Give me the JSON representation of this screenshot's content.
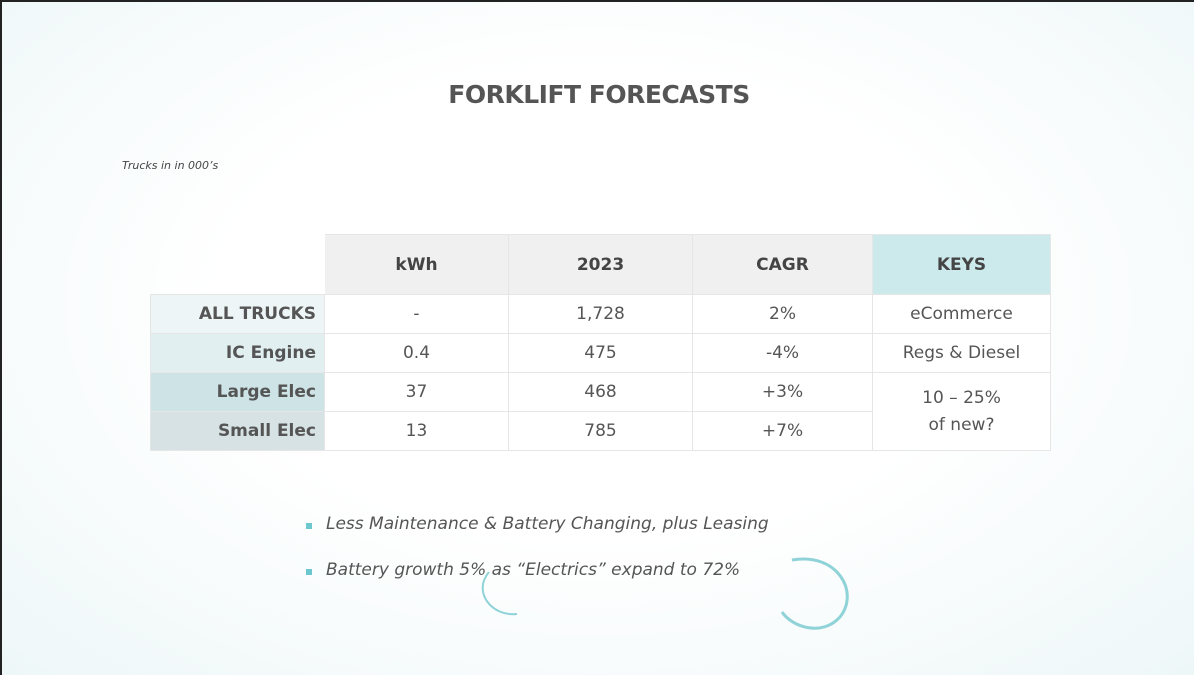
{
  "header": {
    "title": "FORKLIFT FORECASTS",
    "subtitle": "Trucks in in 000’s"
  },
  "table": {
    "columns": [
      "kWh",
      "2023",
      "CAGR",
      "KEYS"
    ],
    "rows": [
      [
        "ALL TRUCKS",
        "-",
        "1,728",
        "2%",
        "eCommerce"
      ],
      [
        "IC Engine",
        "0.4",
        "475",
        "-4%",
        "Regs & Diesel"
      ],
      [
        "Large Elec",
        "37",
        "468",
        "+3%",
        "10 – 25%\nof new?"
      ],
      [
        "Small Elec",
        "13",
        "785",
        "+7%"
      ]
    ]
  },
  "bullets": [
    "Less Maintenance & Battery Changing, plus Leasing",
    "Battery growth 5% as “Electrics” expand to 72%"
  ]
}
